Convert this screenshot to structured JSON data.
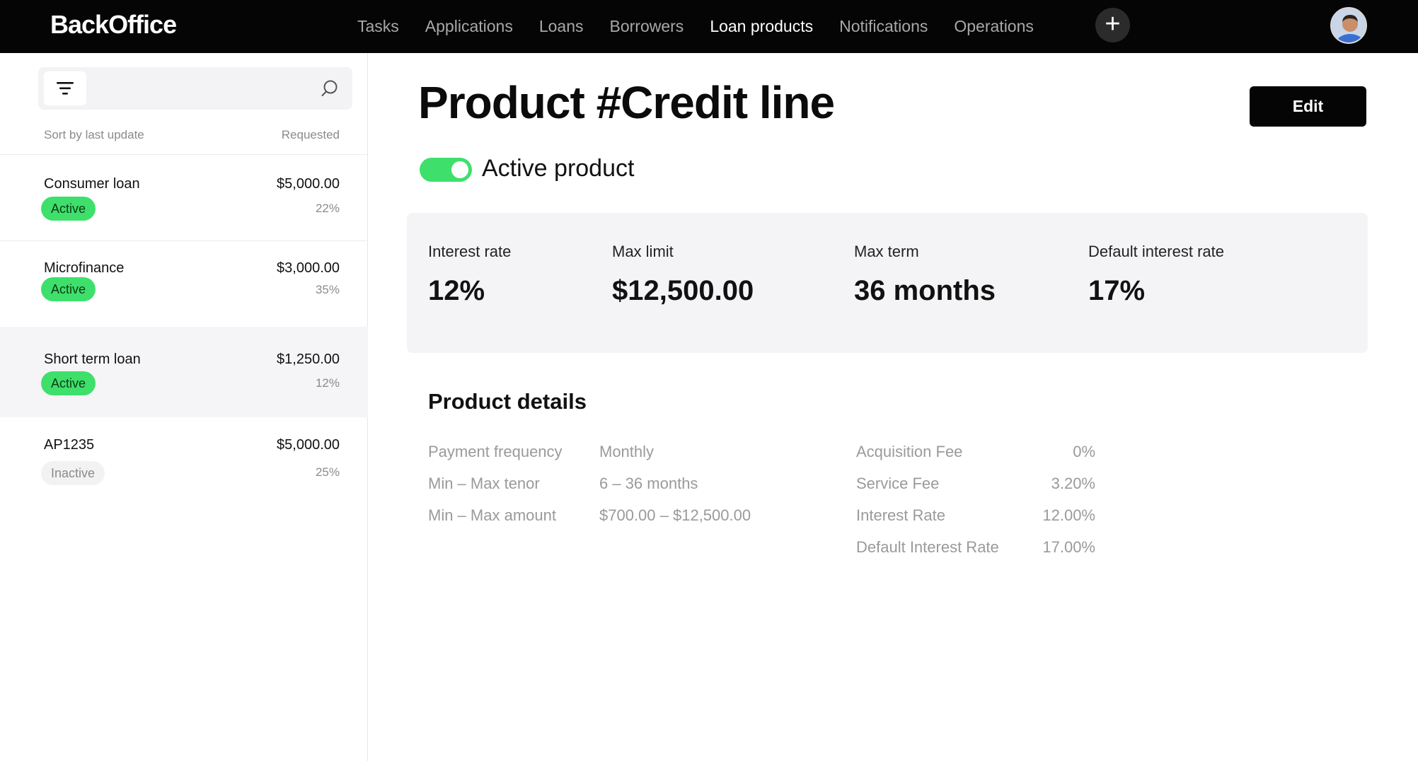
{
  "brand": "BackOffice",
  "nav": {
    "items": [
      "Tasks",
      "Applications",
      "Loans",
      "Borrowers",
      "Loan products",
      "Notifications",
      "Operations"
    ],
    "active": "Loan products",
    "add_icon": "plus-icon"
  },
  "sidebar": {
    "sort_label": "Sort by last update",
    "requested_label": "Requested",
    "items": [
      {
        "name": "Consumer loan",
        "amount": "$5,000.00",
        "status": "Active",
        "percent": "22%"
      },
      {
        "name": "Microfinance",
        "amount": "$3,000.00",
        "status": "Active",
        "percent": "35%"
      },
      {
        "name": "Short term loan",
        "amount": "$1,250.00",
        "status": "Active",
        "percent": "12%"
      },
      {
        "name": "AP1235",
        "amount": "$5,000.00",
        "status": "Inactive",
        "percent": "25%"
      }
    ],
    "selected_index": 2
  },
  "main": {
    "title": "Product #Credit line",
    "edit_label": "Edit",
    "active_label": "Active product",
    "active": true,
    "stats": [
      {
        "label": "Interest rate",
        "value": "12%"
      },
      {
        "label": "Max limit",
        "value": "$12,500.00"
      },
      {
        "label": "Max term",
        "value": "36 months"
      },
      {
        "label": "Default interest rate",
        "value": "17%"
      }
    ],
    "details_title": "Product details",
    "details": [
      {
        "label": "Payment frequency",
        "value": "Monthly"
      },
      {
        "label": "Min – Max tenor",
        "value": "6 – 36 months"
      },
      {
        "label": "Min – Max amount",
        "value": "$700.00 – $12,500.00"
      }
    ],
    "fees": [
      {
        "label": "Acquisition Fee",
        "value": "0%"
      },
      {
        "label": "Service Fee",
        "value": "3.20%"
      },
      {
        "label": "Interest Rate",
        "value": "12.00%"
      },
      {
        "label": "Default Interest Rate",
        "value": "17.00%"
      }
    ]
  },
  "colors": {
    "accent_green": "#3ee06b",
    "topbar": "#050505"
  }
}
